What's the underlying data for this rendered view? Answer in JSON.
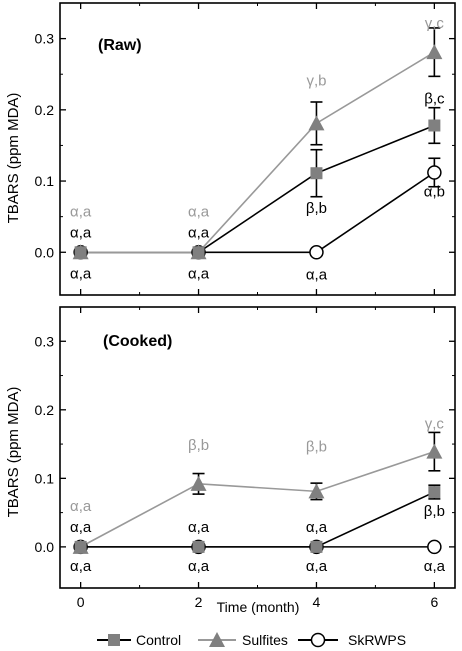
{
  "chart_data": [
    {
      "type": "line",
      "title": "(Raw)",
      "xlabel": "",
      "ylabel": "TBARS (ppm MDA)",
      "x": [
        0,
        2,
        4,
        6
      ],
      "x_ticks": [
        "0",
        "2",
        "4",
        "6"
      ],
      "xlim": [
        -0.35,
        6.35
      ],
      "ylim": [
        -0.06,
        0.35
      ],
      "y_ticks": [
        "0.0",
        "0.1",
        "0.2",
        "0.3"
      ],
      "series": [
        {
          "name": "Control",
          "values": [
            0.0,
            0.0,
            0.111,
            0.178
          ],
          "errors": [
            0.0,
            0.0,
            0.033,
            0.025
          ],
          "color": "#000000",
          "marker_color": "#808080",
          "marker": "square",
          "labels": [
            "α,a",
            "α,a",
            "",
            "β,c"
          ],
          "label_color": "#000000"
        },
        {
          "name": "Sulfites",
          "values": [
            0.0,
            0.0,
            0.181,
            0.281
          ],
          "errors": [
            0.0,
            0.0,
            0.03,
            0.034
          ],
          "color": "#999999",
          "marker_color": "#808080",
          "marker": "triangle",
          "labels": [
            "α,a",
            "α,a",
            "γ,b",
            "γ,c"
          ],
          "label_color": "#999999"
        },
        {
          "name": "SkRWPS",
          "values": [
            0.0,
            0.0,
            0.0,
            0.112
          ],
          "errors": [
            0.0,
            0.0,
            0.0,
            0.02
          ],
          "color": "#000000",
          "marker_color": "#ffffff",
          "marker": "circle",
          "labels": [
            "α,a",
            "α,a",
            "α,a",
            "α,b"
          ],
          "label_color": "#000000"
        }
      ],
      "annotations": [
        "β,b"
      ]
    },
    {
      "type": "line",
      "title": "(Cooked)",
      "xlabel": "Time (month)",
      "ylabel": "TBARS (ppm MDA)",
      "x": [
        0,
        2,
        4,
        6
      ],
      "x_ticks": [
        "0",
        "2",
        "4",
        "6"
      ],
      "xlim": [
        -0.35,
        6.35
      ],
      "ylim": [
        -0.06,
        0.35
      ],
      "y_ticks": [
        "0.0",
        "0.1",
        "0.2",
        "0.3"
      ],
      "series": [
        {
          "name": "Control",
          "values": [
            0.0,
            0.0,
            0.0,
            0.08
          ],
          "errors": [
            0.0,
            0.0,
            0.0,
            0.01
          ],
          "color": "#000000",
          "marker_color": "#808080",
          "marker": "square",
          "labels": [
            "α,a",
            "α,a",
            "α,a",
            "β,b"
          ],
          "label_color": "#000000"
        },
        {
          "name": "Sulfites",
          "values": [
            0.0,
            0.092,
            0.081,
            0.139
          ],
          "errors": [
            0.0,
            0.015,
            0.012,
            0.028
          ],
          "color": "#999999",
          "marker_color": "#808080",
          "marker": "triangle",
          "labels": [
            "α,a",
            "β,b",
            "β,b",
            "γ,c"
          ],
          "label_color": "#999999"
        },
        {
          "name": "SkRWPS",
          "values": [
            0.0,
            0.0,
            0.0,
            0.0
          ],
          "errors": [
            0.0,
            0.0,
            0.0,
            0.0
          ],
          "color": "#000000",
          "marker_color": "#ffffff",
          "marker": "circle",
          "labels": [
            "α,a",
            "α,a",
            "α,a",
            "α,a"
          ],
          "label_color": "#000000"
        }
      ]
    }
  ],
  "legend": {
    "placement": "bottom",
    "items": [
      {
        "label": "Control",
        "marker": "square",
        "color": "#808080",
        "line": "#000000"
      },
      {
        "label": "Sulfites",
        "marker": "triangle",
        "color": "#808080",
        "line": "#999999"
      },
      {
        "label": "SkRWPS",
        "marker": "circle",
        "color": "#ffffff",
        "line": "#000000"
      }
    ]
  }
}
